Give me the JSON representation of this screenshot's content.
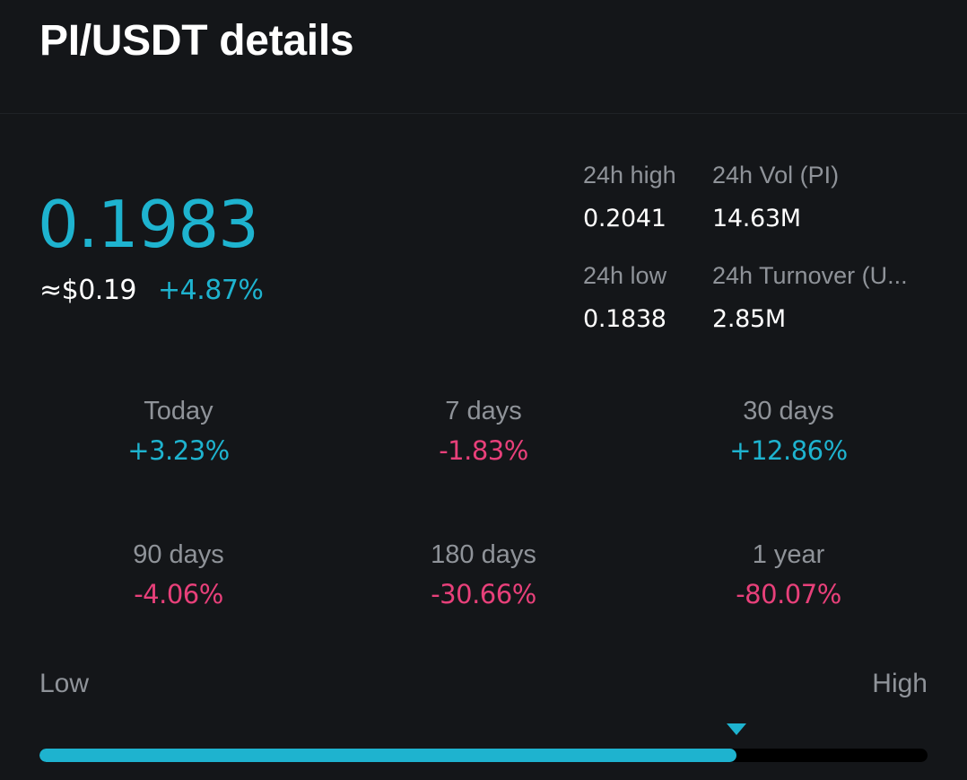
{
  "header": {
    "title": "PI/USDT details"
  },
  "price": {
    "last": "0.1983",
    "usd_equivalent": "≈$0.19",
    "change": "+4.87%"
  },
  "stats": {
    "high_label": "24h high",
    "high_value": "0.2041",
    "vol_label": "24h Vol (PI)",
    "vol_value": "14.63M",
    "low_label": "24h low",
    "low_value": "0.1838",
    "turnover_label": "24h Turnover (U...",
    "turnover_value": "2.85M"
  },
  "performance": [
    {
      "label": "Today",
      "value": "+3.23%",
      "direction": "up"
    },
    {
      "label": "7 days",
      "value": "-1.83%",
      "direction": "down"
    },
    {
      "label": "30 days",
      "value": "+12.86%",
      "direction": "up"
    },
    {
      "label": "90 days",
      "value": "-4.06%",
      "direction": "down"
    },
    {
      "label": "180 days",
      "value": "-30.66%",
      "direction": "down"
    },
    {
      "label": "1 year",
      "value": "-80.07%",
      "direction": "down"
    }
  ],
  "range": {
    "low_label": "Low",
    "high_label": "High",
    "position_fraction": 0.785
  },
  "colors": {
    "accent": "#1eb3cf",
    "negative": "#e8407a",
    "background": "#141619",
    "muted": "#8f9399"
  }
}
